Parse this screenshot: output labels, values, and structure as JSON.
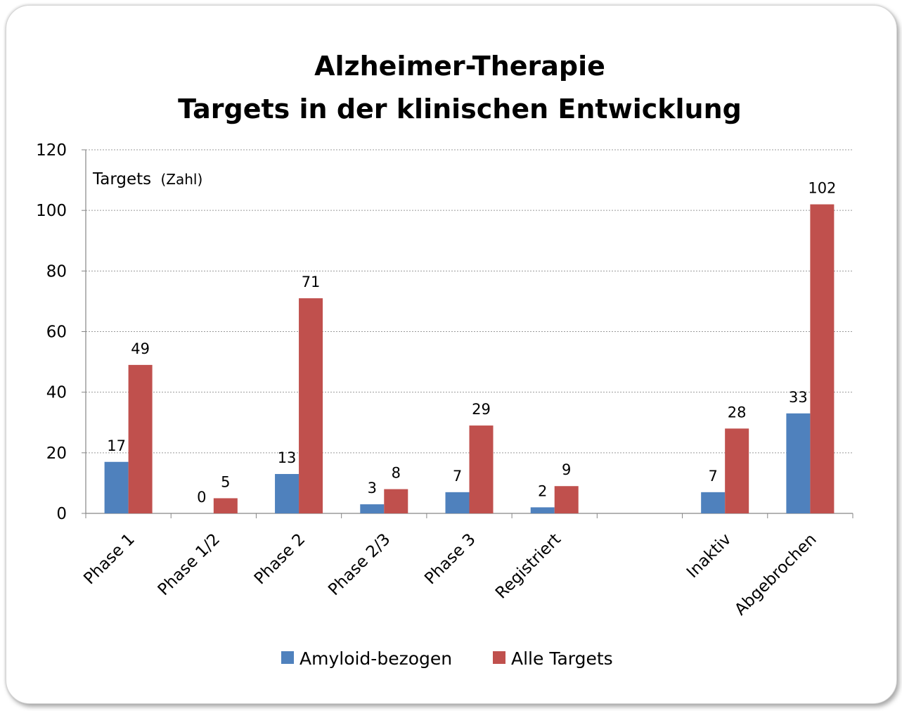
{
  "chart_data": {
    "type": "bar",
    "title": [
      "Alzheimer-Therapie",
      "Targets in der klinischen Entwicklung"
    ],
    "ylabel": "Targets",
    "ylabel_unit": "(Zahl)",
    "ylim": [
      0,
      120
    ],
    "yticks": [
      0,
      20,
      40,
      60,
      80,
      100,
      120
    ],
    "grid": true,
    "legend_position": "bottom",
    "categories": [
      "Phase 1",
      "Phase 1/2",
      "Phase 2",
      "Phase 2/3",
      "Phase 3",
      "Registriert",
      "",
      "Inaktiv",
      "Abgebrochen"
    ],
    "series": [
      {
        "name": "Amyloid-bezogen",
        "color": "#4f81bd",
        "values": [
          17,
          0,
          13,
          3,
          7,
          2,
          null,
          7,
          33
        ]
      },
      {
        "name": "Alle Targets",
        "color": "#c0504d",
        "values": [
          49,
          5,
          71,
          8,
          29,
          9,
          null,
          28,
          102
        ]
      }
    ]
  }
}
